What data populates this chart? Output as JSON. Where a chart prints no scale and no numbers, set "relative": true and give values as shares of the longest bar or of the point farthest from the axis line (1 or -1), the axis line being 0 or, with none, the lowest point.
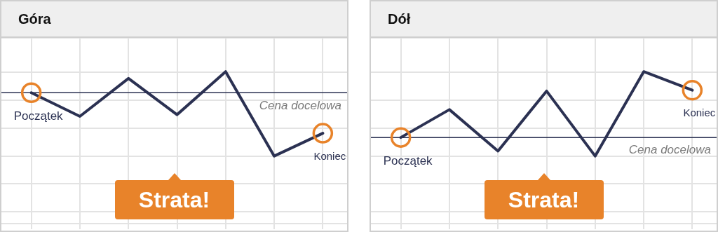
{
  "chart_data": [
    {
      "type": "line",
      "title": "Góra",
      "relative": true,
      "grid": true,
      "marker": "none",
      "line_style": "solid",
      "legend": false,
      "categories": [
        null,
        null,
        null,
        null,
        null,
        null,
        null
      ],
      "series": [
        {
          "color": "#2b3152",
          "values": [
            0.75,
            0.47,
            0.92,
            0.49,
            1,
            0,
            0.27
          ]
        }
      ],
      "ref_lines": [
        {
          "axis": "y",
          "value": 0.75,
          "label": "Cena docelowa",
          "color": "#2b3152"
        }
      ],
      "annotations": [
        "Strata!",
        {
          "text": "Początek",
          "y": 0.75
        },
        {
          "text": "Koniec",
          "y": 0.27
        }
      ]
    },
    {
      "type": "line",
      "title": "Dół",
      "relative": true,
      "grid": true,
      "marker": "none",
      "line_style": "solid",
      "legend": false,
      "categories": [
        null,
        null,
        null,
        null,
        null,
        null,
        null
      ],
      "series": [
        {
          "color": "#2b3152",
          "values": [
            0.22,
            0.55,
            0.06,
            0.77,
            0,
            1,
            0.78
          ]
        }
      ],
      "ref_lines": [
        {
          "axis": "y",
          "value": 0.22,
          "label": "Cena docelowa",
          "color": "#2b3152"
        }
      ],
      "annotations": [
        "Strata!",
        {
          "text": "Początek",
          "y": 0.22
        },
        {
          "text": "Koniec",
          "y": 0.78
        }
      ]
    }
  ]
}
